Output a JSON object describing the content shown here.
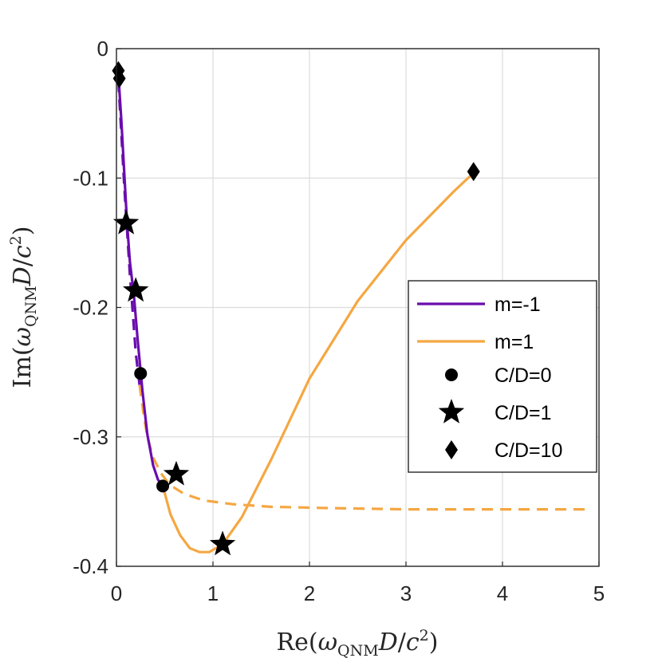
{
  "chart_data": {
    "type": "line",
    "xlabel": "Re(ω_QNM D/c²)",
    "ylabel": "Im(ω_QNM D/c²)",
    "xlim": [
      0,
      5
    ],
    "ylim": [
      -0.4,
      0
    ],
    "xticks": [
      0,
      1,
      2,
      3,
      4,
      5
    ],
    "xtick_labels": [
      "0",
      "1",
      "2",
      "3",
      "4",
      "5"
    ],
    "yticks": [
      0,
      -0.1,
      -0.2,
      -0.3,
      -0.4
    ],
    "ytick_labels": [
      "0",
      "-0.1",
      "-0.2",
      "-0.3",
      "-0.4"
    ],
    "grid": true,
    "legend_position": "right",
    "colors": {
      "m_minus_1": "#6a0dad",
      "m_plus_1": "#f5a742",
      "marker": "#000000",
      "grid": "#dcdcdc",
      "axis": "#262626"
    },
    "series": [
      {
        "name": "m=-1",
        "style": "solid",
        "legend": true,
        "color_key": "m_minus_1",
        "x": [
          0.02,
          0.05,
          0.08,
          0.11,
          0.14,
          0.18,
          0.22,
          0.27,
          0.32,
          0.38,
          0.43,
          0.48
        ],
        "y": [
          -0.02,
          -0.055,
          -0.095,
          -0.135,
          -0.165,
          -0.19,
          -0.225,
          -0.265,
          -0.298,
          -0.322,
          -0.333,
          -0.338
        ]
      },
      {
        "name": "m=1",
        "style": "solid",
        "legend": true,
        "color_key": "m_plus_1",
        "x": [
          0.48,
          0.56,
          0.66,
          0.76,
          0.86,
          0.96,
          1.1,
          1.3,
          1.6,
          2.0,
          2.5,
          3.0,
          3.5,
          3.7
        ],
        "y": [
          -0.338,
          -0.36,
          -0.376,
          -0.386,
          -0.389,
          -0.389,
          -0.383,
          -0.362,
          -0.318,
          -0.255,
          -0.195,
          -0.148,
          -0.11,
          -0.096
        ]
      },
      {
        "name": "m=-1 (dashed)",
        "style": "dashed",
        "legend": false,
        "color_key": "m_minus_1",
        "x": [
          0.02,
          0.05,
          0.08,
          0.11,
          0.14,
          0.17,
          0.2,
          0.24
        ],
        "y": [
          -0.025,
          -0.065,
          -0.105,
          -0.14,
          -0.175,
          -0.205,
          -0.235,
          -0.26
        ]
      },
      {
        "name": "m=1 (dashed)",
        "style": "dashed",
        "legend": false,
        "color_key": "m_plus_1",
        "x": [
          0.24,
          0.28,
          0.32,
          0.38,
          0.46,
          0.55,
          0.7,
          0.9,
          1.2,
          1.6,
          2.2,
          3.0,
          4.0,
          4.9
        ],
        "y": [
          -0.26,
          -0.282,
          -0.3,
          -0.316,
          -0.328,
          -0.337,
          -0.344,
          -0.349,
          -0.352,
          -0.354,
          -0.355,
          -0.356,
          -0.356,
          -0.356
        ]
      }
    ],
    "markers": [
      {
        "label": "C/D=0",
        "shape": "circle",
        "points": [
          [
            0.25,
            -0.251
          ],
          [
            0.48,
            -0.338
          ]
        ]
      },
      {
        "label": "C/D=1",
        "shape": "star",
        "points": [
          [
            0.1,
            -0.135
          ],
          [
            0.2,
            -0.187
          ],
          [
            0.62,
            -0.329
          ],
          [
            1.1,
            -0.383
          ]
        ]
      },
      {
        "label": "C/D=10",
        "shape": "diamond",
        "points": [
          [
            0.02,
            -0.017
          ],
          [
            0.03,
            -0.023
          ],
          [
            3.7,
            -0.095
          ]
        ]
      }
    ],
    "legend_entries": [
      "m=-1",
      "m=1",
      "C/D=0",
      "C/D=1",
      "C/D=10"
    ]
  }
}
